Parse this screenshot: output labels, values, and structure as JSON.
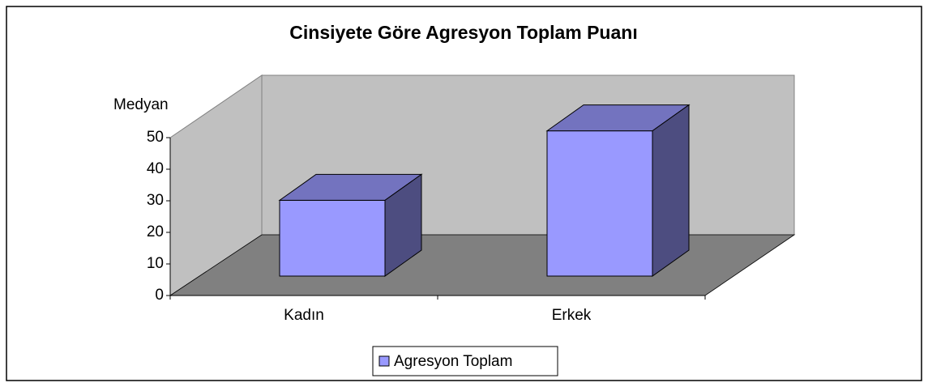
{
  "chart_data": {
    "type": "bar3d",
    "title": "Cinsiyete Göre Agresyon Toplam Puanı",
    "y_label": "Medyan",
    "categories": [
      "Kadın",
      "Erkek"
    ],
    "series": [
      {
        "name": "Agresyon Toplam",
        "color": "#9999ff",
        "values": [
          24,
          46
        ]
      }
    ],
    "ylim": [
      0,
      50
    ],
    "yticks": [
      0,
      10,
      20,
      30,
      40,
      50
    ],
    "grid": false,
    "legend": "bottom"
  }
}
